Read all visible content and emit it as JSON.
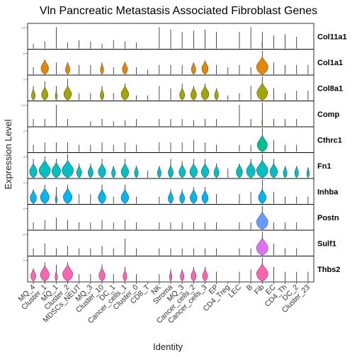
{
  "chart_data": {
    "type": "violin",
    "title": "Vln Pancreatic Metastasis Associated Fibroblast Genes",
    "xlabel": "Identity",
    "ylabel": "Expression Level",
    "clusters": [
      "MQ_4",
      "Cluster_1",
      "MQ_1",
      "Cluster_2",
      "MDSCs_NEUT",
      "MQ_3",
      "Cluster_10",
      "DC_1",
      "Cancer_cells_1",
      "Cluster_0",
      "CD8_T",
      "NK",
      "Stroma",
      "MQ_3",
      "Cancer_cells_2",
      "Cancer_cells_3",
      "EP",
      "CD4_Treg",
      "LEC",
      "B",
      "Fib",
      "EC",
      "CD4_Th",
      "DC_2",
      "Cluster_23"
    ],
    "panels": [
      {
        "gene": "Col11a1",
        "color": "#F8766D",
        "ytick": "1.5",
        "widths": [
          0,
          0,
          0,
          0,
          0,
          0,
          0,
          0,
          0,
          0,
          0,
          0,
          0,
          0,
          0,
          0,
          0,
          0,
          0,
          0,
          0.05,
          0,
          0,
          0,
          0
        ],
        "spikes": [
          0.2,
          0.3,
          0.9,
          0.25,
          0.35,
          0.3,
          0.2,
          0.35,
          0.3,
          0.25,
          0,
          0.9,
          0.8,
          0.7,
          0.75,
          0.8,
          0.7,
          0,
          0.7,
          0.9,
          0.7,
          0.55,
          0.6,
          0.5,
          0
        ]
      },
      {
        "gene": "Col1a1",
        "color": "#E58700",
        "ytick": "5",
        "widths": [
          0,
          0.6,
          0,
          0.35,
          0,
          0,
          0.25,
          0,
          0.4,
          0,
          0,
          0,
          0,
          0,
          0.35,
          0.5,
          0,
          0,
          0,
          0,
          0.9,
          0,
          0,
          0,
          0
        ],
        "spikes": [
          0.3,
          0.6,
          0.5,
          0.5,
          0.4,
          0.4,
          0.5,
          0.3,
          0.5,
          0.3,
          0.2,
          0.4,
          0.4,
          0.4,
          0.5,
          0.55,
          0.4,
          0.3,
          0.4,
          0.3,
          1.0,
          0.5,
          0.4,
          0.4,
          0.4
        ]
      },
      {
        "gene": "Col8a1",
        "color": "#A3A500",
        "ytick": "3",
        "widths": [
          0.3,
          0.5,
          0.15,
          0.6,
          0,
          0,
          0.3,
          0,
          0.6,
          0,
          0,
          0,
          0,
          0.4,
          0.45,
          0.6,
          0.3,
          0,
          0,
          0,
          0.85,
          0,
          0,
          0,
          0
        ],
        "spikes": [
          0.6,
          0.8,
          0.6,
          0.9,
          0.3,
          0.3,
          0.6,
          0.3,
          0.7,
          0.2,
          0.2,
          0.6,
          0.5,
          0.7,
          0.6,
          0.7,
          0.5,
          0.2,
          0.3,
          0.6,
          1.0,
          0.5,
          0.3,
          0.4,
          0.4
        ]
      },
      {
        "gene": "Comp",
        "color": "#5CB800",
        "ytick": "1.8",
        "widths": [
          0,
          0,
          0,
          0,
          0,
          0,
          0,
          0,
          0,
          0,
          0,
          0,
          0,
          0,
          0,
          0,
          0,
          0,
          0,
          0,
          0.05,
          0,
          0,
          0,
          0
        ],
        "spikes": [
          0.3,
          0.3,
          0.9,
          0.3,
          0,
          0.2,
          0.3,
          0.2,
          0.25,
          0.3,
          0,
          0.3,
          0.3,
          0.3,
          0.25,
          0.3,
          0.3,
          0,
          0.9,
          0.3,
          1.0,
          0.3,
          0.3,
          0.3,
          0
        ]
      },
      {
        "gene": "Cthrc1",
        "color": "#00C08B",
        "ytick": "3",
        "widths": [
          0,
          0,
          0,
          0,
          0,
          0,
          0,
          0,
          0,
          0,
          0,
          0,
          0,
          0,
          0,
          0,
          0,
          0,
          0,
          0,
          0.8,
          0,
          0,
          0,
          0
        ],
        "spikes": [
          0.3,
          0.4,
          0.4,
          0.4,
          0.3,
          0.3,
          0.4,
          0.3,
          0.4,
          0.3,
          0,
          0.4,
          0.4,
          0.4,
          0.5,
          0.4,
          0.3,
          0,
          0.3,
          0.3,
          1.0,
          0.5,
          0.3,
          0.3,
          0
        ]
      },
      {
        "gene": "Fn1",
        "color": "#00BFC4",
        "ytick": "4",
        "widths": [
          0.6,
          0.9,
          0.7,
          0.9,
          0.4,
          0.4,
          0.6,
          0.3,
          0.6,
          0.3,
          0,
          0.3,
          0.4,
          0.5,
          0.6,
          0.6,
          0.4,
          0,
          0.5,
          0.7,
          0.9,
          0.6,
          0.3,
          0.3,
          0.2
        ],
        "spikes": [
          0.8,
          0.9,
          0.8,
          1.0,
          0.6,
          0.6,
          0.8,
          0.5,
          0.8,
          0.5,
          0.3,
          0.5,
          0.8,
          0.7,
          0.8,
          0.8,
          0.6,
          0.4,
          0.6,
          0.8,
          1.0,
          0.8,
          0.5,
          0.5,
          0.4
        ]
      },
      {
        "gene": "Inhba",
        "color": "#00B4F0",
        "ytick": "4",
        "widths": [
          0.5,
          0.7,
          0.15,
          0.7,
          0,
          0,
          0.6,
          0,
          0.6,
          0,
          0,
          0,
          0.4,
          0.4,
          0.55,
          0.5,
          0,
          0,
          0,
          0,
          0.6,
          0,
          0,
          0,
          0
        ],
        "spikes": [
          0.6,
          0.8,
          0.7,
          0.8,
          0.4,
          0.4,
          0.8,
          0.3,
          0.8,
          0.3,
          0,
          0.3,
          0.6,
          0.6,
          0.7,
          0.7,
          0.4,
          0,
          0.4,
          0.5,
          1.0,
          0.5,
          0.3,
          0.3,
          0.3
        ]
      },
      {
        "gene": "Postn",
        "color": "#619CFF",
        "ytick": "4",
        "widths": [
          0,
          0,
          0,
          0,
          0,
          0,
          0,
          0,
          0,
          0,
          0,
          0,
          0,
          0,
          0,
          0,
          0,
          0,
          0,
          0,
          0.9,
          0,
          0,
          0,
          0
        ],
        "spikes": [
          0.3,
          0.4,
          0.5,
          0.4,
          0.3,
          0.3,
          0.4,
          0.3,
          0.4,
          0.3,
          0,
          0.3,
          0.3,
          0.3,
          0.3,
          0.3,
          0.3,
          0,
          0.3,
          0.3,
          1.0,
          0.3,
          0.3,
          0.3,
          0
        ]
      },
      {
        "gene": "Sulf1",
        "color": "#DF70F8",
        "ytick": "8",
        "widths": [
          0,
          0,
          0,
          0,
          0,
          0,
          0,
          0,
          0,
          0,
          0,
          0,
          0,
          0,
          0,
          0,
          0,
          0,
          0,
          0,
          0.9,
          0,
          0,
          0,
          0
        ],
        "spikes": [
          0.3,
          0.5,
          0.3,
          0.4,
          0.3,
          0.3,
          0.4,
          0.3,
          0.7,
          0.3,
          0,
          0.3,
          0.3,
          0.3,
          0.3,
          0.3,
          0.3,
          0,
          0.3,
          0.3,
          1.0,
          0.5,
          0.3,
          0.3,
          0
        ]
      },
      {
        "gene": "Thbs2",
        "color": "#FF64B0",
        "ytick": "2",
        "widths": [
          0.4,
          0.7,
          0.2,
          0.8,
          0,
          0,
          0.5,
          0,
          0.3,
          0,
          0,
          0,
          0.2,
          0.3,
          0.4,
          0.4,
          0,
          0,
          0,
          0,
          0.9,
          0,
          0,
          0,
          0
        ],
        "spikes": [
          0.5,
          0.8,
          0.7,
          0.8,
          0.3,
          0.3,
          0.7,
          0.3,
          0.6,
          0.3,
          0,
          0.3,
          0.5,
          0.5,
          0.6,
          0.6,
          0.4,
          0,
          0.4,
          0.5,
          1.0,
          0.6,
          0.4,
          0.4,
          0.4
        ]
      }
    ]
  }
}
